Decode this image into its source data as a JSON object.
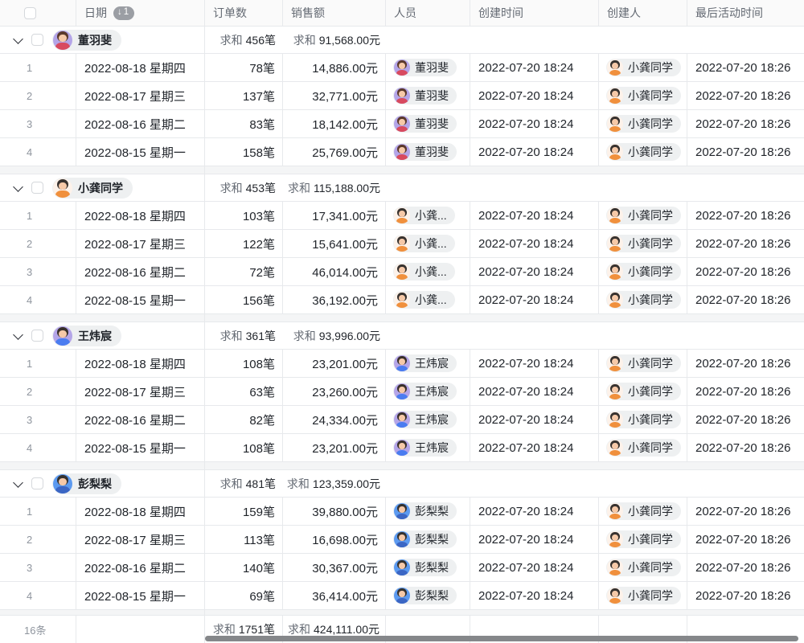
{
  "sum_prefix": "求和",
  "colors": {
    "header_bg": "#fafafa",
    "border": "#e7e9ec",
    "pill_bg": "#eef0f1",
    "badge_bg": "#9b9ea4",
    "band_bg": "#f4f5f6",
    "scrollbar": "#85878a",
    "muted_text": "#646a73",
    "primary_text": "#1f2329"
  },
  "header": {
    "columns": [
      {
        "label": "日期",
        "sort_badge": "1"
      },
      {
        "label": "订单数"
      },
      {
        "label": "销售额"
      },
      {
        "label": "人员"
      },
      {
        "label": "创建时间"
      },
      {
        "label": "创建人"
      },
      {
        "label": "最后活动时间"
      }
    ]
  },
  "avatars": {
    "董羽斐": {
      "bg": "#b4a5e8",
      "hair": "#5a392c",
      "skin": "#f6c9a8",
      "shirt": "#d84a5f"
    },
    "小龚同学": {
      "bg": "#fdf2ea",
      "hair": "#37322f",
      "skin": "#f6c9a8",
      "shirt": "#f0903d"
    },
    "王炜宸": {
      "bg": "#b4a5e8",
      "hair": "#39302b",
      "skin": "#f6c9a8",
      "shirt": "#4a7cf0"
    },
    "彭梨梨": {
      "bg": "#5c9af0",
      "hair": "#35322f",
      "skin": "#f6c9a8",
      "shirt": "#3b66c4"
    }
  },
  "groups": [
    {
      "name": "董羽斐",
      "orders_sum": "456笔",
      "sales_sum": "91,568.00元",
      "rows": [
        {
          "index": "1",
          "date": "2022-08-18 星期四",
          "orders": "78笔",
          "sales": "14,886.00元",
          "person": "董羽斐",
          "person_avatar": "董羽斐",
          "created_at": "2022-07-20 18:24",
          "creator": "小龚同学",
          "last_active": "2022-07-20 18:26"
        },
        {
          "index": "2",
          "date": "2022-08-17 星期三",
          "orders": "137笔",
          "sales": "32,771.00元",
          "person": "董羽斐",
          "person_avatar": "董羽斐",
          "created_at": "2022-07-20 18:24",
          "creator": "小龚同学",
          "last_active": "2022-07-20 18:26"
        },
        {
          "index": "3",
          "date": "2022-08-16 星期二",
          "orders": "83笔",
          "sales": "18,142.00元",
          "person": "董羽斐",
          "person_avatar": "董羽斐",
          "created_at": "2022-07-20 18:24",
          "creator": "小龚同学",
          "last_active": "2022-07-20 18:26"
        },
        {
          "index": "4",
          "date": "2022-08-15 星期一",
          "orders": "158笔",
          "sales": "25,769.00元",
          "person": "董羽斐",
          "person_avatar": "董羽斐",
          "created_at": "2022-07-20 18:24",
          "creator": "小龚同学",
          "last_active": "2022-07-20 18:26"
        }
      ]
    },
    {
      "name": "小龚同学",
      "orders_sum": "453笔",
      "sales_sum": "115,188.00元",
      "rows": [
        {
          "index": "1",
          "date": "2022-08-18 星期四",
          "orders": "103笔",
          "sales": "17,341.00元",
          "person": "小龚...",
          "person_avatar": "小龚同学",
          "created_at": "2022-07-20 18:24",
          "creator": "小龚同学",
          "last_active": "2022-07-20 18:26"
        },
        {
          "index": "2",
          "date": "2022-08-17 星期三",
          "orders": "122笔",
          "sales": "15,641.00元",
          "person": "小龚...",
          "person_avatar": "小龚同学",
          "created_at": "2022-07-20 18:24",
          "creator": "小龚同学",
          "last_active": "2022-07-20 18:26"
        },
        {
          "index": "3",
          "date": "2022-08-16 星期二",
          "orders": "72笔",
          "sales": "46,014.00元",
          "person": "小龚...",
          "person_avatar": "小龚同学",
          "created_at": "2022-07-20 18:24",
          "creator": "小龚同学",
          "last_active": "2022-07-20 18:26"
        },
        {
          "index": "4",
          "date": "2022-08-15 星期一",
          "orders": "156笔",
          "sales": "36,192.00元",
          "person": "小龚...",
          "person_avatar": "小龚同学",
          "created_at": "2022-07-20 18:24",
          "creator": "小龚同学",
          "last_active": "2022-07-20 18:26"
        }
      ]
    },
    {
      "name": "王炜宸",
      "orders_sum": "361笔",
      "sales_sum": "93,996.00元",
      "rows": [
        {
          "index": "1",
          "date": "2022-08-18 星期四",
          "orders": "108笔",
          "sales": "23,201.00元",
          "person": "王炜宸",
          "person_avatar": "王炜宸",
          "created_at": "2022-07-20 18:24",
          "creator": "小龚同学",
          "last_active": "2022-07-20 18:26"
        },
        {
          "index": "2",
          "date": "2022-08-17 星期三",
          "orders": "63笔",
          "sales": "23,260.00元",
          "person": "王炜宸",
          "person_avatar": "王炜宸",
          "created_at": "2022-07-20 18:24",
          "creator": "小龚同学",
          "last_active": "2022-07-20 18:26"
        },
        {
          "index": "3",
          "date": "2022-08-16 星期二",
          "orders": "82笔",
          "sales": "24,334.00元",
          "person": "王炜宸",
          "person_avatar": "王炜宸",
          "created_at": "2022-07-20 18:24",
          "creator": "小龚同学",
          "last_active": "2022-07-20 18:26"
        },
        {
          "index": "4",
          "date": "2022-08-15 星期一",
          "orders": "108笔",
          "sales": "23,201.00元",
          "person": "王炜宸",
          "person_avatar": "王炜宸",
          "created_at": "2022-07-20 18:24",
          "creator": "小龚同学",
          "last_active": "2022-07-20 18:26"
        }
      ]
    },
    {
      "name": "彭梨梨",
      "orders_sum": "481笔",
      "sales_sum": "123,359.00元",
      "rows": [
        {
          "index": "1",
          "date": "2022-08-18 星期四",
          "orders": "159笔",
          "sales": "39,880.00元",
          "person": "彭梨梨",
          "person_avatar": "彭梨梨",
          "created_at": "2022-07-20 18:24",
          "creator": "小龚同学",
          "last_active": "2022-07-20 18:26"
        },
        {
          "index": "2",
          "date": "2022-08-17 星期三",
          "orders": "113笔",
          "sales": "16,698.00元",
          "person": "彭梨梨",
          "person_avatar": "彭梨梨",
          "created_at": "2022-07-20 18:24",
          "creator": "小龚同学",
          "last_active": "2022-07-20 18:26"
        },
        {
          "index": "3",
          "date": "2022-08-16 星期二",
          "orders": "140笔",
          "sales": "30,367.00元",
          "person": "彭梨梨",
          "person_avatar": "彭梨梨",
          "created_at": "2022-07-20 18:24",
          "creator": "小龚同学",
          "last_active": "2022-07-20 18:26"
        },
        {
          "index": "4",
          "date": "2022-08-15 星期一",
          "orders": "69笔",
          "sales": "36,414.00元",
          "person": "彭梨梨",
          "person_avatar": "彭梨梨",
          "created_at": "2022-07-20 18:24",
          "creator": "小龚同学",
          "last_active": "2022-07-20 18:26"
        }
      ]
    }
  ],
  "footer": {
    "count": "16条",
    "orders_sum": "1751笔",
    "sales_sum": "424,111.00元"
  }
}
